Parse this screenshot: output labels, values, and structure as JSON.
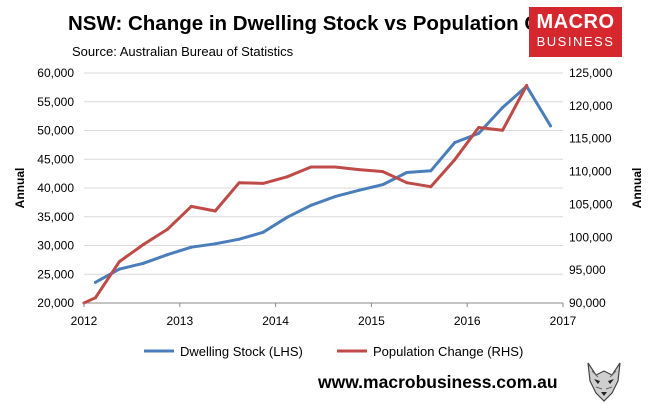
{
  "header": {
    "title": "NSW: Change in Dwelling Stock vs Population Change",
    "subtitle": "Source: Australian Bureau of Statistics"
  },
  "logo": {
    "line1": "MACRO",
    "line2": "BUSINESS",
    "color": "#d6262e"
  },
  "footer": {
    "url": "www.macrobusiness.com.au",
    "mascot_icon": "wolf-icon"
  },
  "chart_data": {
    "type": "line",
    "title": "NSW: Change in Dwelling Stock vs Population Change",
    "ylabel_left": "Annual",
    "ylabel_right": "Annual",
    "xlim": [
      2012,
      2017
    ],
    "x_ticks": [
      "2012",
      "2013",
      "2014",
      "2015",
      "2016",
      "2017"
    ],
    "ylim_left": [
      20000,
      60000
    ],
    "ylim_right": [
      90000,
      125000
    ],
    "left_ticks": [
      "20,000",
      "25,000",
      "30,000",
      "35,000",
      "40,000",
      "45,000",
      "50,000",
      "55,000",
      "60,000"
    ],
    "right_ticks": [
      "90,000",
      "95,000",
      "100,000",
      "105,000",
      "110,000",
      "115,000",
      "120,000",
      "125,000"
    ],
    "grid": "horizontal",
    "legend_position": "bottom",
    "series": [
      {
        "name": "Dwelling Stock (LHS)",
        "axis": "left",
        "color": "#4a7ebb",
        "x": [
          2012.12,
          2012.37,
          2012.62,
          2012.87,
          2013.12,
          2013.37,
          2013.62,
          2013.87,
          2014.12,
          2014.37,
          2014.62,
          2014.87,
          2015.12,
          2015.37,
          2015.62,
          2015.87,
          2016.12,
          2016.37,
          2016.62,
          2016.87
        ],
        "values": [
          23600,
          25900,
          26900,
          28400,
          29700,
          30300,
          31100,
          32300,
          34900,
          37000,
          38500,
          39600,
          40600,
          42700,
          43000,
          47900,
          49500,
          54000,
          57700,
          50800
        ]
      },
      {
        "name": "Population Change (RHS)",
        "axis": "right",
        "color": "#be4b48",
        "x": [
          2012.0,
          2012.12,
          2012.37,
          2012.62,
          2012.87,
          2013.12,
          2013.37,
          2013.62,
          2013.87,
          2014.12,
          2014.37,
          2014.62,
          2014.87,
          2015.12,
          2015.37,
          2015.62,
          2015.87,
          2016.12,
          2016.37,
          2016.62
        ],
        "values": [
          90000,
          90800,
          96300,
          98900,
          101200,
          104700,
          104000,
          108300,
          108200,
          109200,
          110700,
          110700,
          110300,
          110000,
          108300,
          107700,
          111800,
          116700,
          116300,
          123100
        ]
      }
    ]
  }
}
